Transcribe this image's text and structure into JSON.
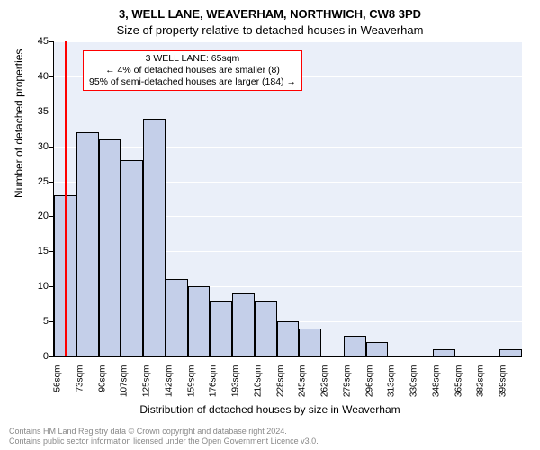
{
  "title_line1": "3, WELL LANE, WEAVERHAM, NORTHWICH, CW8 3PD",
  "title_line2": "Size of property relative to detached houses in Weaverham",
  "ylabel": "Number of detached properties",
  "xlabel": "Distribution of detached houses by size in Weaverham",
  "footer_line1": "Contains HM Land Registry data © Crown copyright and database right 2024.",
  "footer_line2": "Contains public sector information licensed under the Open Government Licence v3.0.",
  "chart": {
    "type": "histogram",
    "background_color": "#eaeff9",
    "grid_color": "#ffffff",
    "bar_fill": "#c4cfe9",
    "bar_border": "#000000",
    "vline_color": "#ff0000",
    "infobox_border": "#ff0000",
    "infobox_bg": "#ffffff",
    "ylim": [
      0,
      45
    ],
    "ytick_step": 5,
    "values": [
      23,
      32,
      31,
      28,
      34,
      11,
      10,
      8,
      9,
      8,
      5,
      4,
      0,
      3,
      2,
      0,
      0,
      1,
      0,
      0,
      1
    ],
    "x_tick_labels": [
      "56sqm",
      "73sqm",
      "90sqm",
      "107sqm",
      "125sqm",
      "142sqm",
      "159sqm",
      "176sqm",
      "193sqm",
      "210sqm",
      "228sqm",
      "245sqm",
      "262sqm",
      "279sqm",
      "296sqm",
      "313sqm",
      "330sqm",
      "348sqm",
      "365sqm",
      "382sqm",
      "399sqm"
    ],
    "vline_bin_index": 0,
    "vline_frac_in_bin": 0.5,
    "infobox_lines": [
      "3 WELL LANE: 65sqm",
      "← 4% of detached houses are smaller (8)",
      "95% of semi-detached houses are larger (184) →"
    ],
    "title_fontsize": 13,
    "axis_label_fontsize": 12,
    "tick_fontsize": 11
  }
}
